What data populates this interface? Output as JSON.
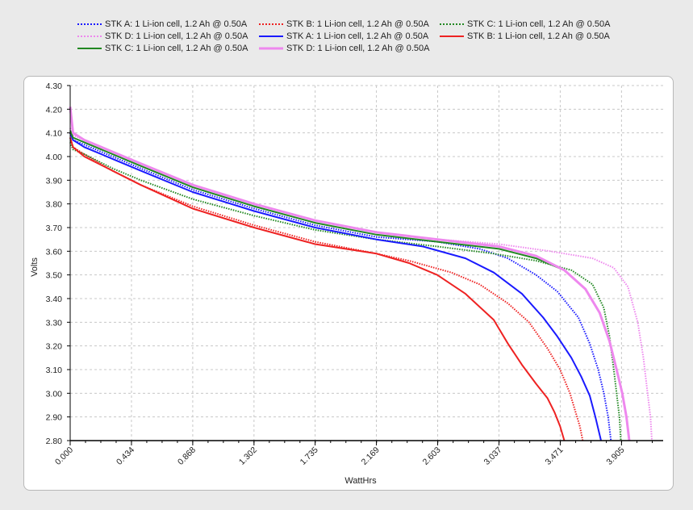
{
  "chart_data": {
    "type": "line",
    "title": "",
    "xlabel": "WattHrs",
    "ylabel": "Volts",
    "xlim": [
      0,
      4.2
    ],
    "ylim": [
      2.8,
      4.3
    ],
    "x_ticks": [
      "0.000",
      "0.434",
      "0.868",
      "1.302",
      "1.735",
      "2.169",
      "2.603",
      "3.037",
      "3.471",
      "3.905"
    ],
    "x_tick_values": [
      0.0,
      0.434,
      0.868,
      1.302,
      1.735,
      2.169,
      2.603,
      3.037,
      3.471,
      3.905
    ],
    "y_ticks": [
      "4.30",
      "4.20",
      "4.10",
      "4.00",
      "3.90",
      "3.80",
      "3.70",
      "3.60",
      "3.50",
      "3.40",
      "3.30",
      "3.20",
      "3.10",
      "3.00",
      "2.90",
      "2.80"
    ],
    "y_tick_values": [
      4.3,
      4.2,
      4.1,
      4.0,
      3.9,
      3.8,
      3.7,
      3.6,
      3.5,
      3.4,
      3.3,
      3.2,
      3.1,
      3.0,
      2.9,
      2.8
    ],
    "grid": true,
    "legend_position": "top",
    "series": [
      {
        "name": "STK A: 1 Li-ion cell, 1.2 Ah @ 0.50A",
        "color": "#1a1aff",
        "style": "dotted",
        "x": [
          0.0,
          0.02,
          0.1,
          0.3,
          0.5,
          0.868,
          1.302,
          1.735,
          2.169,
          2.603,
          2.9,
          3.1,
          3.3,
          3.45,
          3.6,
          3.68,
          3.74,
          3.78,
          3.81,
          3.83
        ],
        "y": [
          4.1,
          4.07,
          4.05,
          4.0,
          3.95,
          3.86,
          3.78,
          3.71,
          3.66,
          3.64,
          3.61,
          3.57,
          3.5,
          3.43,
          3.32,
          3.21,
          3.1,
          3.0,
          2.9,
          2.8
        ]
      },
      {
        "name": "STK B: 1 Li-ion cell, 1.2 Ah @ 0.50A",
        "color": "#ee2222",
        "style": "dotted",
        "x": [
          0.0,
          0.02,
          0.1,
          0.3,
          0.5,
          0.868,
          1.302,
          1.735,
          2.169,
          2.4,
          2.7,
          2.9,
          3.1,
          3.25,
          3.38,
          3.47,
          3.54,
          3.58,
          3.61,
          3.63
        ],
        "y": [
          4.08,
          4.04,
          4.01,
          3.94,
          3.88,
          3.79,
          3.71,
          3.64,
          3.59,
          3.56,
          3.51,
          3.46,
          3.38,
          3.3,
          3.19,
          3.1,
          3.0,
          2.92,
          2.86,
          2.8
        ]
      },
      {
        "name": "STK C: 1 Li-ion cell, 1.2 Ah @ 0.50A",
        "color": "#228822",
        "style": "dotted",
        "x": [
          0.0,
          0.02,
          0.1,
          0.3,
          0.5,
          0.868,
          1.302,
          1.735,
          2.169,
          2.603,
          3.0,
          3.3,
          3.55,
          3.7,
          3.78,
          3.82,
          3.85,
          3.87,
          3.89,
          3.9
        ],
        "y": [
          4.06,
          4.03,
          4.01,
          3.95,
          3.9,
          3.82,
          3.75,
          3.69,
          3.65,
          3.62,
          3.59,
          3.56,
          3.52,
          3.46,
          3.36,
          3.24,
          3.1,
          3.0,
          2.9,
          2.8
        ]
      },
      {
        "name": "STK D: 1 Li-ion cell, 1.2 Ah @ 0.50A",
        "color": "#ee88ee",
        "style": "dotted",
        "x": [
          0.0,
          0.02,
          0.1,
          0.3,
          0.5,
          0.868,
          1.302,
          1.735,
          2.169,
          2.603,
          3.037,
          3.4,
          3.7,
          3.85,
          3.95,
          4.02,
          4.06,
          4.09,
          4.11,
          4.12
        ],
        "y": [
          4.12,
          4.09,
          4.07,
          4.02,
          3.97,
          3.88,
          3.8,
          3.73,
          3.68,
          3.65,
          3.63,
          3.6,
          3.57,
          3.53,
          3.45,
          3.3,
          3.15,
          3.0,
          2.9,
          2.8
        ]
      },
      {
        "name": "STK A: 1 Li-ion cell, 1.2 Ah @ 0.50A",
        "color": "#1a1aff",
        "style": "solid",
        "x": [
          0.0,
          0.02,
          0.1,
          0.3,
          0.5,
          0.868,
          1.302,
          1.735,
          2.169,
          2.5,
          2.8,
          3.0,
          3.2,
          3.35,
          3.45,
          3.55,
          3.62,
          3.68,
          3.72,
          3.76
        ],
        "y": [
          4.1,
          4.07,
          4.04,
          3.99,
          3.94,
          3.85,
          3.77,
          3.7,
          3.65,
          3.62,
          3.57,
          3.51,
          3.42,
          3.32,
          3.24,
          3.15,
          3.07,
          2.99,
          2.9,
          2.8
        ]
      },
      {
        "name": "STK B: 1 Li-ion cell, 1.2 Ah @ 0.50A",
        "color": "#ee2222",
        "style": "solid",
        "x": [
          0.0,
          0.02,
          0.1,
          0.3,
          0.5,
          0.868,
          1.302,
          1.735,
          2.169,
          2.4,
          2.6,
          2.8,
          3.0,
          3.1,
          3.2,
          3.3,
          3.38,
          3.43,
          3.47,
          3.5
        ],
        "y": [
          4.08,
          4.04,
          4.0,
          3.94,
          3.88,
          3.78,
          3.7,
          3.63,
          3.59,
          3.55,
          3.5,
          3.42,
          3.31,
          3.21,
          3.12,
          3.04,
          2.98,
          2.92,
          2.86,
          2.8
        ]
      },
      {
        "name": "STK C: 1 Li-ion cell, 1.2 Ah @ 0.50A",
        "color": "#228822",
        "style": "solid",
        "x": [
          0.0,
          0.02,
          0.1,
          0.3,
          0.5,
          0.868,
          1.302,
          1.735,
          2.169,
          2.603,
          3.037,
          3.3,
          3.5,
          3.65,
          3.75,
          3.82,
          3.87,
          3.91,
          3.94,
          3.96
        ],
        "y": [
          4.11,
          4.08,
          4.06,
          4.01,
          3.96,
          3.87,
          3.79,
          3.72,
          3.67,
          3.64,
          3.61,
          3.57,
          3.52,
          3.44,
          3.34,
          3.22,
          3.1,
          3.0,
          2.9,
          2.8
        ]
      },
      {
        "name": "STK D: 1 Li-ion cell, 1.2 Ah @ 0.50A",
        "color": "#ee88ee",
        "style": "solid",
        "x": [
          0.0,
          0.02,
          0.1,
          0.3,
          0.5,
          0.868,
          1.302,
          1.735,
          2.169,
          2.603,
          3.037,
          3.3,
          3.5,
          3.65,
          3.75,
          3.82,
          3.87,
          3.91,
          3.94,
          3.96
        ],
        "y": [
          4.21,
          4.1,
          4.07,
          4.02,
          3.97,
          3.88,
          3.8,
          3.73,
          3.68,
          3.65,
          3.62,
          3.58,
          3.52,
          3.44,
          3.34,
          3.22,
          3.1,
          3.0,
          2.9,
          2.8
        ]
      }
    ]
  }
}
